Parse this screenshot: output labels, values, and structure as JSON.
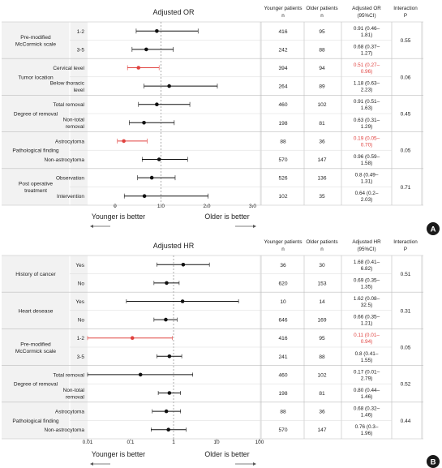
{
  "chart_data": [
    {
      "type": "forest",
      "panel_label": "A",
      "title": "Adjusted OR",
      "xscale": "linear",
      "xlim": [
        -0.6,
        3.15
      ],
      "xticks": [
        "0",
        "1.0",
        "2.0",
        "3.0"
      ],
      "xtick_values": [
        0,
        1,
        2,
        3
      ],
      "reference_line": 1,
      "left_caption": "Younger is better",
      "right_caption": "Older is better",
      "columns": {
        "young": "Younger patients n",
        "old": "Older patients n",
        "est": "Adjusted OR (95%CI)",
        "p": "Interaction P"
      },
      "groups": [
        {
          "label": "Pre-modified McCormick scale",
          "p": "0.55",
          "rows": [
            {
              "label": "1-2",
              "est": 0.91,
              "lo": 0.46,
              "hi": 1.81,
              "young": "416",
              "old": "95",
              "text": "0.91 (0.46–1.81)",
              "red": false
            },
            {
              "label": "3-5",
              "est": 0.68,
              "lo": 0.37,
              "hi": 1.27,
              "young": "242",
              "old": "88",
              "text": "0.68 (0.37–1.27)",
              "red": false
            }
          ]
        },
        {
          "label": "Tumor location",
          "p": "0.06",
          "rows": [
            {
              "label": "Cervical level",
              "est": 0.51,
              "lo": 0.27,
              "hi": 0.96,
              "young": "394",
              "old": "94",
              "text": "0.51 (0.27–0.96)",
              "red": true
            },
            {
              "label": "Below thoracic level",
              "est": 1.18,
              "lo": 0.63,
              "hi": 2.23,
              "young": "264",
              "old": "89",
              "text": "1.18 (0.63–2.23)",
              "red": false
            }
          ]
        },
        {
          "label": "Degree of removal",
          "p": "0.45",
          "rows": [
            {
              "label": "Total removal",
              "est": 0.91,
              "lo": 0.51,
              "hi": 1.63,
              "young": "460",
              "old": "102",
              "text": "0.91 (0.51–1.63)",
              "red": false
            },
            {
              "label": "Non-total removal",
              "est": 0.63,
              "lo": 0.31,
              "hi": 1.29,
              "young": "198",
              "old": "81",
              "text": "0.63 (0.31–1.29)",
              "red": false
            }
          ]
        },
        {
          "label": "Pathological finding",
          "p": "0.05",
          "rows": [
            {
              "label": "Astrocytoma",
              "est": 0.19,
              "lo": 0.05,
              "hi": 0.7,
              "young": "88",
              "old": "36",
              "text": "0.19 (0.05–0.70)",
              "red": true
            },
            {
              "label": "Non-astrocytoma",
              "est": 0.96,
              "lo": 0.59,
              "hi": 1.58,
              "young": "570",
              "old": "147",
              "text": "0.96 (0.59–1.58)",
              "red": false
            }
          ]
        },
        {
          "label": "Post operative treatment",
          "p": "0.71",
          "rows": [
            {
              "label": "Observation",
              "est": 0.8,
              "lo": 0.49,
              "hi": 1.31,
              "young": "526",
              "old": "136",
              "text": "0.8 (0.49–1.31)",
              "red": false
            },
            {
              "label": "Intervention",
              "est": 0.64,
              "lo": 0.2,
              "hi": 2.03,
              "young": "102",
              "old": "35",
              "text": "0.64 (0.2–2.03)",
              "red": false
            }
          ]
        }
      ]
    },
    {
      "type": "forest",
      "panel_label": "B",
      "title": "Adjusted HR",
      "xscale": "log",
      "xlim": [
        0.01,
        100
      ],
      "xticks": [
        "0.01",
        "0.1",
        "1",
        "10",
        "100"
      ],
      "xtick_values": [
        0.01,
        0.1,
        1,
        10,
        100
      ],
      "reference_line": 1,
      "left_caption": "Younger is better",
      "right_caption": "Older is better",
      "columns": {
        "young": "Younger patients n",
        "old": "Older patients n",
        "est": "Adjusted HR (95%CI)",
        "p": "Interaction P"
      },
      "groups": [
        {
          "label": "History of cancer",
          "p": "0.51",
          "rows": [
            {
              "label": "Yes",
              "est": 1.68,
              "lo": 0.41,
              "hi": 6.82,
              "young": "36",
              "old": "30",
              "text": "1.68 (0.41–6.82)",
              "red": false
            },
            {
              "label": "No",
              "est": 0.69,
              "lo": 0.35,
              "hi": 1.35,
              "young": "620",
              "old": "153",
              "text": "0.69 (0.35–1.35)",
              "red": false
            }
          ]
        },
        {
          "label": "Heart desease",
          "p": "0.31",
          "rows": [
            {
              "label": "Yes",
              "est": 1.62,
              "lo": 0.08,
              "hi": 32.5,
              "young": "10",
              "old": "14",
              "text": "1.62 (0.08–32.5)",
              "red": false
            },
            {
              "label": "No",
              "est": 0.66,
              "lo": 0.35,
              "hi": 1.21,
              "young": "646",
              "old": "169",
              "text": "0.66 (0.35–1.21)",
              "red": false
            }
          ]
        },
        {
          "label": "Pre-modified McCormick scale",
          "p": "0.05",
          "rows": [
            {
              "label": "1-2",
              "est": 0.11,
              "lo": 0.01,
              "hi": 0.94,
              "young": "416",
              "old": "95",
              "text": "0.11 (0.01–0.94)",
              "red": true
            },
            {
              "label": "3-5",
              "est": 0.8,
              "lo": 0.41,
              "hi": 1.55,
              "young": "241",
              "old": "88",
              "text": "0.8 (0.41–1.55)",
              "red": false
            }
          ]
        },
        {
          "label": "Degree of removal",
          "p": "0.52",
          "rows": [
            {
              "label": "Total removal",
              "est": 0.17,
              "lo": 0.01,
              "hi": 2.79,
              "young": "460",
              "old": "102",
              "text": "0.17 (0.01–2.79)",
              "red": false
            },
            {
              "label": "Non-total removal",
              "est": 0.8,
              "lo": 0.44,
              "hi": 1.46,
              "young": "198",
              "old": "81",
              "text": "0.80 (0.44–1.46)",
              "red": false
            }
          ]
        },
        {
          "label": "Pathological finding",
          "p": "0.44",
          "rows": [
            {
              "label": "Astrocytoma",
              "est": 0.68,
              "lo": 0.32,
              "hi": 1.46,
              "young": "88",
              "old": "36",
              "text": "0.68 (0.32–1.46)",
              "red": false
            },
            {
              "label": "Non-astrocytoma",
              "est": 0.76,
              "lo": 0.3,
              "hi": 1.96,
              "young": "570",
              "old": "147",
              "text": "0.76 (0.3–1.96)",
              "red": false
            }
          ]
        }
      ]
    }
  ]
}
